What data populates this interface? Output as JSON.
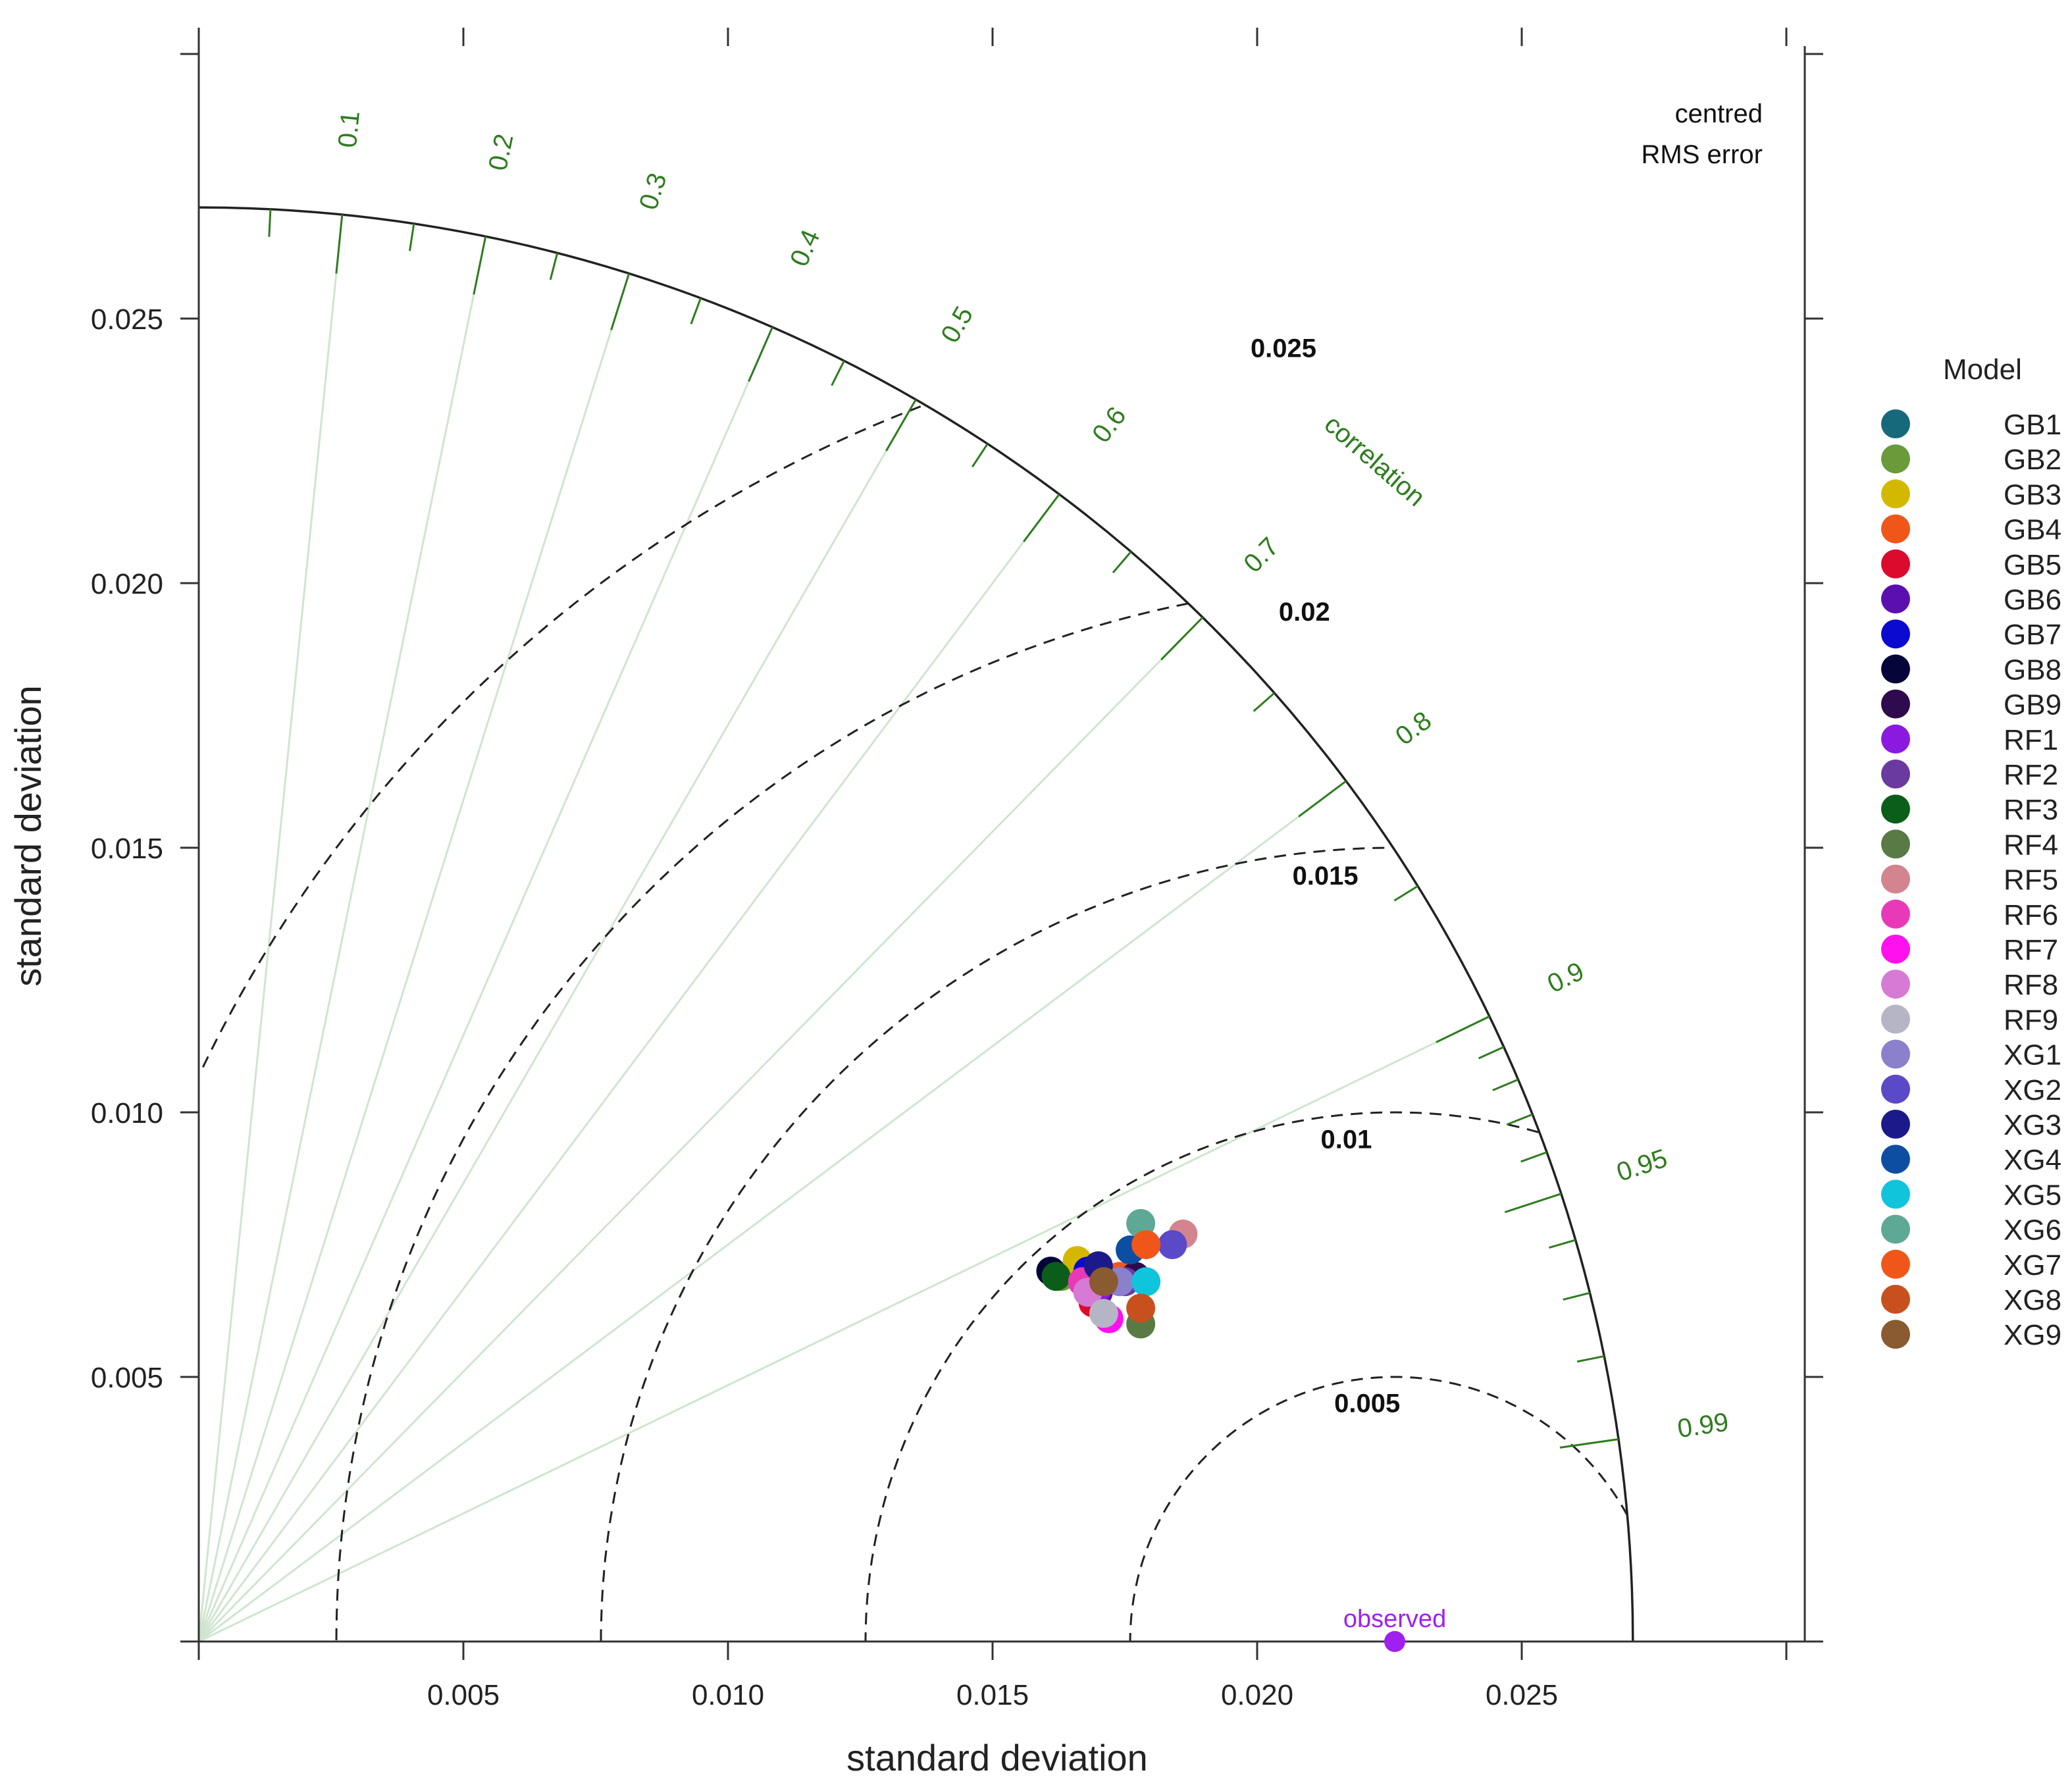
{
  "chart_data": {
    "type": "scatter",
    "subtype": "taylor-diagram",
    "xlabel": "standard deviation",
    "ylabel": "standard deviation",
    "xlim": [
      0,
      0.03
    ],
    "ylim": [
      0,
      0.03
    ],
    "x_ticks": [
      "0.005",
      "0.010",
      "0.015",
      "0.020",
      "0.025"
    ],
    "y_ticks": [
      "0.005",
      "0.010",
      "0.015",
      "0.020",
      "0.025"
    ],
    "tick_values": [
      0.005,
      0.01,
      0.015,
      0.02,
      0.025
    ],
    "max_sd": 0.0271,
    "correlation_title": "correlation",
    "correlation_labels": [
      "0.1",
      "0.2",
      "0.3",
      "0.4",
      "0.5",
      "0.6",
      "0.7",
      "0.8",
      "0.9",
      "0.95",
      "0.99"
    ],
    "correlation_values": [
      0.1,
      0.2,
      0.3,
      0.4,
      0.5,
      0.6,
      0.7,
      0.8,
      0.9,
      0.95,
      0.99
    ],
    "rms_note": [
      "centred",
      "RMS error"
    ],
    "rms_labels": [
      "0.005",
      "0.01",
      "0.015",
      "0.02",
      "0.025"
    ],
    "rms_values": [
      0.005,
      0.01,
      0.015,
      0.02,
      0.025
    ],
    "observed": {
      "label": "observed",
      "sd": 0.0226,
      "color": "#a020f0"
    },
    "legend_title": "Model",
    "legend_position": "right",
    "series": [
      {
        "name": "GB1",
        "color": "#16697a",
        "x": 0.0167,
        "y": 0.0068
      },
      {
        "name": "GB2",
        "color": "#6a9a3a",
        "x": 0.0163,
        "y": 0.0069
      },
      {
        "name": "GB3",
        "color": "#d4b800",
        "x": 0.0166,
        "y": 0.0072
      },
      {
        "name": "GB4",
        "color": "#f0561a",
        "x": 0.0174,
        "y": 0.0069
      },
      {
        "name": "GB5",
        "color": "#dc0a2c",
        "x": 0.0169,
        "y": 0.0064
      },
      {
        "name": "GB6",
        "color": "#5b0fb0",
        "x": 0.017,
        "y": 0.0066
      },
      {
        "name": "GB7",
        "color": "#0a0ad0",
        "x": 0.0168,
        "y": 0.007
      },
      {
        "name": "GB8",
        "color": "#05053a",
        "x": 0.0161,
        "y": 0.007
      },
      {
        "name": "GB9",
        "color": "#2e0a4e",
        "x": 0.0177,
        "y": 0.0069
      },
      {
        "name": "RF1",
        "color": "#8a1ae0",
        "x": 0.017,
        "y": 0.0067
      },
      {
        "name": "RF2",
        "color": "#6a3aa0",
        "x": 0.0175,
        "y": 0.0068
      },
      {
        "name": "RF3",
        "color": "#0b5e1a",
        "x": 0.0162,
        "y": 0.0069
      },
      {
        "name": "RF4",
        "color": "#5a7a45",
        "x": 0.0178,
        "y": 0.006
      },
      {
        "name": "RF5",
        "color": "#d4848e",
        "x": 0.0186,
        "y": 0.0077
      },
      {
        "name": "RF6",
        "color": "#e83ab8",
        "x": 0.0167,
        "y": 0.0068
      },
      {
        "name": "RF7",
        "color": "#ff10ee",
        "x": 0.0172,
        "y": 0.0061
      },
      {
        "name": "RF8",
        "color": "#d67ad6",
        "x": 0.0168,
        "y": 0.0066
      },
      {
        "name": "RF9",
        "color": "#b5b5c5",
        "x": 0.0171,
        "y": 0.0062
      },
      {
        "name": "XG1",
        "color": "#8a80cc",
        "x": 0.0174,
        "y": 0.0068
      },
      {
        "name": "XG2",
        "color": "#5a4ac8",
        "x": 0.0184,
        "y": 0.0075
      },
      {
        "name": "XG3",
        "color": "#1c1a8a",
        "x": 0.017,
        "y": 0.0071
      },
      {
        "name": "XG4",
        "color": "#0e4ea2",
        "x": 0.0176,
        "y": 0.0074
      },
      {
        "name": "XG5",
        "color": "#10c4dc",
        "x": 0.0179,
        "y": 0.0068
      },
      {
        "name": "XG6",
        "color": "#5ea896",
        "x": 0.0178,
        "y": 0.0079
      },
      {
        "name": "XG7",
        "color": "#f0561a",
        "x": 0.0179,
        "y": 0.0075
      },
      {
        "name": "XG8",
        "color": "#c8501e",
        "x": 0.0178,
        "y": 0.0063
      },
      {
        "name": "XG9",
        "color": "#8a5a30",
        "x": 0.0171,
        "y": 0.0068
      }
    ]
  }
}
